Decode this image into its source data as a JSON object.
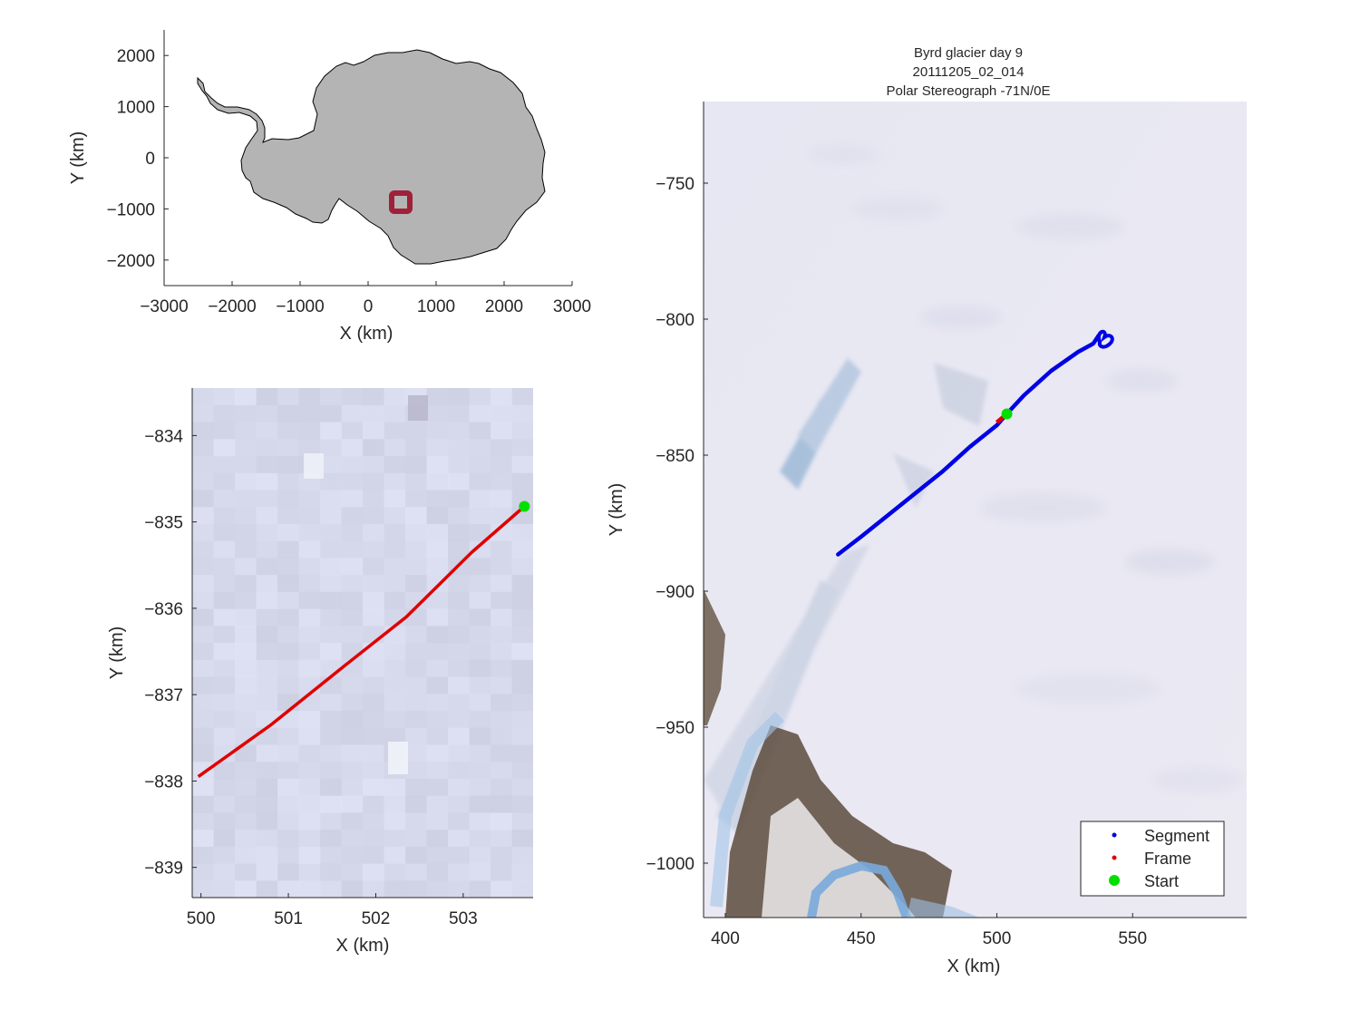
{
  "overview": {
    "xlabel": "X (km)",
    "ylabel": "Y (km)",
    "xticks": [
      "-3000",
      "-2000",
      "-1000",
      "0",
      "1000",
      "2000",
      "3000"
    ],
    "yticks": [
      "2000",
      "1000",
      "0",
      "-1000",
      "-2000"
    ],
    "xlim": [
      -3000,
      3000
    ],
    "ylim": [
      -2500,
      2500
    ],
    "continent_color": "#b4b4b4",
    "marker_color": "#a0203a",
    "marker_center": [
      490,
      -880
    ]
  },
  "zoom": {
    "xlabel": "X (km)",
    "ylabel": "Y (km)",
    "xticks": [
      "500",
      "501",
      "502",
      "503"
    ],
    "yticks": [
      "-834",
      "-835",
      "-836",
      "-837",
      "-838",
      "-839"
    ],
    "xlim": [
      499.9,
      503.8
    ],
    "ylim": [
      -839.35,
      -833.45
    ],
    "frame_path": [
      [
        499.97,
        -837.95
      ],
      [
        500.8,
        -837.35
      ],
      [
        501.6,
        -836.7
      ],
      [
        502.35,
        -836.1
      ],
      [
        502.7,
        -835.75
      ],
      [
        503.1,
        -835.35
      ],
      [
        503.7,
        -834.82
      ]
    ],
    "start": [
      503.7,
      -834.82
    ],
    "line_color": "#e00000",
    "start_color": "#00e000"
  },
  "main": {
    "title_lines": [
      "Byrd glacier day 9",
      "20111205_02_014",
      "Polar Stereograph -71N/0E"
    ],
    "xlabel": "X (km)",
    "ylabel": "Y (km)",
    "xticks": [
      "400",
      "450",
      "500",
      "550"
    ],
    "yticks": [
      "-750",
      "-800",
      "-850",
      "-900",
      "-950",
      "-1000"
    ],
    "xlim": [
      392,
      592
    ],
    "ylim": [
      -1020,
      -720
    ],
    "segment_path": [
      [
        441.5,
        -886.5
      ],
      [
        450,
        -880
      ],
      [
        460,
        -872
      ],
      [
        470,
        -864
      ],
      [
        480,
        -856
      ],
      [
        490,
        -847
      ],
      [
        500,
        -839
      ],
      [
        503.7,
        -834.8
      ],
      [
        510,
        -828
      ],
      [
        520,
        -819
      ],
      [
        530,
        -812
      ],
      [
        535.5,
        -809
      ],
      [
        537.5,
        -806
      ]
    ],
    "frame_path": [
      [
        499.97,
        -837.95
      ],
      [
        503.7,
        -834.82
      ]
    ],
    "start": [
      503.7,
      -834.82
    ],
    "segment_color": "#0000e6",
    "frame_color": "#e00000",
    "start_color": "#00e000",
    "legend": {
      "items": [
        "Segment",
        "Frame",
        "Start"
      ]
    }
  }
}
